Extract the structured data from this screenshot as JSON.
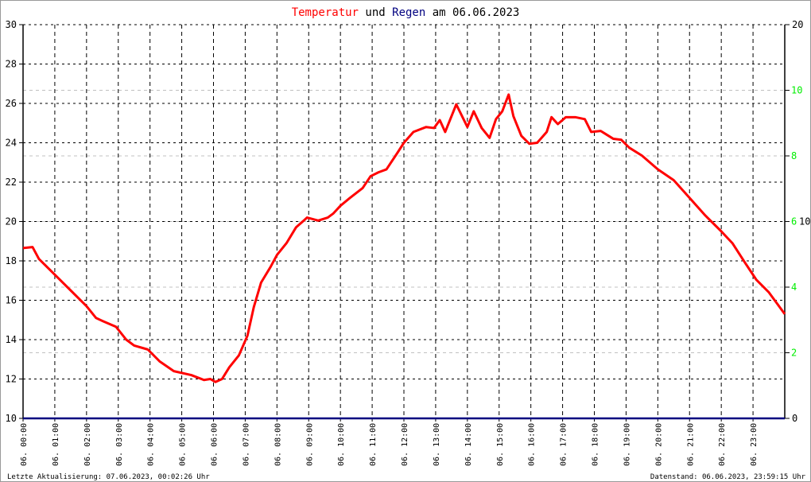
{
  "title": {
    "part1": "Temperatur",
    "part2": " und ",
    "part3": "Regen",
    "part4": " am 06.06.2023"
  },
  "colors": {
    "temperature": "#ff0000",
    "rain": "#000080",
    "rain_axis": "#00ee00",
    "grid": "#000000",
    "grid_light": "#c0c0c0"
  },
  "footer": {
    "left": "Letzte Aktualisierung: 07.06.2023, 00:02:26 Uhr",
    "right": "Datenstand: 06.06.2023, 23:59:15 Uhr"
  },
  "chart_data": {
    "type": "line",
    "title": "Temperatur und Regen am 06.06.2023",
    "xlim": [
      0,
      24
    ],
    "x_tick_labels": [
      "06. 00:00",
      "06. 01:00",
      "06. 02:00",
      "06. 03:00",
      "06. 04:00",
      "06. 05:00",
      "06. 06:00",
      "06. 07:00",
      "06. 08:00",
      "06. 09:00",
      "06. 10:00",
      "06. 11:00",
      "06. 12:00",
      "06. 13:00",
      "06. 14:00",
      "06. 15:00",
      "06. 16:00",
      "06. 17:00",
      "06. 18:00",
      "06. 19:00",
      "06. 20:00",
      "06. 21:00",
      "06. 22:00",
      "06. 23:00"
    ],
    "y_left": {
      "lim": [
        10,
        30
      ],
      "ticks": [
        10,
        12,
        14,
        16,
        18,
        20,
        22,
        24,
        26,
        28,
        30
      ]
    },
    "y_right_black": {
      "lim": [
        0,
        20
      ],
      "ticks": [
        0,
        10,
        20
      ]
    },
    "y_right_rain": {
      "lim": [
        0,
        12
      ],
      "ticks": [
        2,
        4,
        6,
        8,
        10
      ]
    },
    "grid": true,
    "series": [
      {
        "name": "Temperatur",
        "axis": "left",
        "x": [
          0,
          0.3,
          0.5,
          1,
          1.5,
          2,
          2.3,
          2.5,
          2.93,
          3.25,
          3.5,
          3.93,
          4.3,
          4.75,
          5.3,
          5.7,
          5.9,
          6.06,
          6.27,
          6.5,
          6.8,
          7.07,
          7.27,
          7.5,
          7.8,
          8.0,
          8.3,
          8.6,
          8.95,
          9.3,
          9.6,
          9.77,
          10.0,
          10.3,
          10.7,
          10.95,
          11.2,
          11.45,
          11.8,
          12.0,
          12.3,
          12.7,
          12.95,
          13.13,
          13.3,
          13.65,
          14.0,
          14.2,
          14.45,
          14.7,
          14.9,
          15.1,
          15.3,
          15.45,
          15.7,
          15.95,
          16.2,
          16.5,
          16.65,
          16.85,
          17.1,
          17.4,
          17.7,
          17.9,
          18.2,
          18.6,
          18.85,
          19.1,
          19.5,
          20.0,
          20.5,
          21.0,
          21.5,
          22.0,
          22.35,
          22.75,
          23.1,
          23.5,
          24.0
        ],
        "y": [
          18.65,
          18.7,
          18.1,
          17.3,
          16.5,
          15.7,
          15.1,
          14.95,
          14.65,
          14.0,
          13.7,
          13.5,
          12.9,
          12.4,
          12.2,
          11.95,
          12.0,
          11.85,
          12.0,
          12.6,
          13.2,
          14.2,
          15.65,
          16.9,
          17.7,
          18.3,
          18.9,
          19.7,
          20.2,
          20.05,
          20.2,
          20.4,
          20.8,
          21.2,
          21.7,
          22.3,
          22.5,
          22.65,
          23.5,
          24.0,
          24.55,
          24.8,
          24.75,
          25.15,
          24.55,
          25.95,
          24.8,
          25.6,
          24.75,
          24.25,
          25.2,
          25.6,
          26.45,
          25.35,
          24.35,
          23.95,
          24.0,
          24.55,
          25.3,
          24.95,
          25.3,
          25.3,
          25.2,
          24.55,
          24.6,
          24.2,
          24.15,
          23.75,
          23.35,
          22.65,
          22.1,
          21.2,
          20.3,
          19.5,
          18.9,
          17.9,
          17.05,
          16.4,
          15.3
        ]
      },
      {
        "name": "Regen",
        "axis": "right",
        "x": [
          0,
          24
        ],
        "y": [
          0,
          0
        ]
      }
    ]
  }
}
